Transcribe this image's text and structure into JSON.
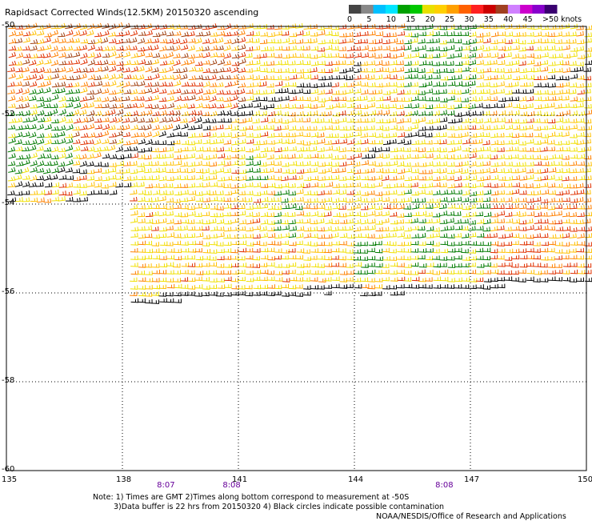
{
  "title": "Rapidsact Corrected Winds(12.5KM) 20150320 ascending",
  "legend": {
    "labels": [
      "0",
      "5",
      "10",
      "15",
      "20",
      "25",
      "30",
      "35",
      "40",
      "45",
      ">50 knots"
    ],
    "colors": [
      "#444444",
      "#888888",
      "#00bfff",
      "#00e5ff",
      "#00a000",
      "#00c800",
      "#e8e000",
      "#ffd000",
      "#ffa000",
      "#ff6000",
      "#ff2020",
      "#cc0000",
      "#a04020",
      "#d080ff",
      "#cc00cc",
      "#8800cc",
      "#3a0070"
    ]
  },
  "axes": {
    "x_ticks": [
      "135",
      "138",
      "141",
      "144",
      "147",
      "150"
    ],
    "y_ticks": [
      "-50",
      "-52",
      "-54",
      "-56",
      "-58",
      "-60"
    ]
  },
  "times": [
    {
      "label": "8:07",
      "lon": 139.1
    },
    {
      "label": "8:08",
      "lon": 140.8
    },
    {
      "label": "8:08",
      "lon": 146.3
    }
  ],
  "notes": [
    "Note: 1) Times are GMT 2)Times along bottom correspond to measurement at -50S",
    "3)Data buffer is 22 hrs from 20150320 4) Black circles indicate possible contamination",
    "NOAA/NESDIS/Office of Research and Applications"
  ],
  "wind_colors": {
    "black": "#000000",
    "green": "#007a00",
    "yellow": "#f0e000",
    "gold": "#ffc000",
    "orange": "#ff8000",
    "red": "#e03000",
    "brown": "#a04010"
  }
}
